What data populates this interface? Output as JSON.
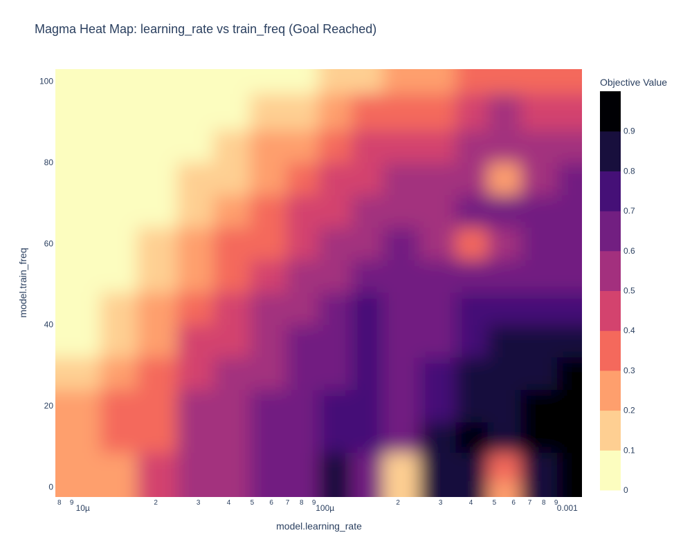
{
  "chart_data": {
    "type": "heatmap",
    "title": "Magma Heat Map: learning_rate vs train_freq (Goal Reached)",
    "xlabel": "model.learning_rate",
    "ylabel": "model.train_freq",
    "x_scale": "log",
    "xlim": [
      7.7e-06,
      0.00115
    ],
    "ylim": [
      -2.5,
      103
    ],
    "x_major_ticks": [
      {
        "value": 1e-05,
        "label": "10µ"
      },
      {
        "value": 0.0001,
        "label": "100µ"
      },
      {
        "value": 0.001,
        "label": "0.001"
      }
    ],
    "x_minor_ticks": [
      {
        "value": 8e-06,
        "label": "8"
      },
      {
        "value": 9e-06,
        "label": "9"
      },
      {
        "value": 2e-05,
        "label": "2"
      },
      {
        "value": 3e-05,
        "label": "3"
      },
      {
        "value": 4e-05,
        "label": "4"
      },
      {
        "value": 5e-05,
        "label": "5"
      },
      {
        "value": 6e-05,
        "label": "6"
      },
      {
        "value": 7e-05,
        "label": "7"
      },
      {
        "value": 8e-05,
        "label": "8"
      },
      {
        "value": 9e-05,
        "label": "9"
      },
      {
        "value": 0.0002,
        "label": "2"
      },
      {
        "value": 0.0003,
        "label": "3"
      },
      {
        "value": 0.0004,
        "label": "4"
      },
      {
        "value": 0.0005,
        "label": "5"
      },
      {
        "value": 0.0006,
        "label": "6"
      },
      {
        "value": 0.0007,
        "label": "7"
      },
      {
        "value": 0.0008,
        "label": "8"
      },
      {
        "value": 0.0009,
        "label": "9"
      }
    ],
    "y_ticks": [
      0,
      20,
      40,
      60,
      80,
      100
    ],
    "colorscale": "Magma",
    "colorbar": {
      "title": "Objective Value",
      "ticks": [
        0,
        0.1,
        0.2,
        0.3,
        0.4,
        0.5,
        0.6,
        0.7,
        0.8,
        0.9
      ],
      "range": [
        0,
        1
      ],
      "colors": [
        "#fcfdbf",
        "#fecf92",
        "#fe9f6d",
        "#f4695c",
        "#d3436e",
        "#a3307e",
        "#721f81",
        "#451077",
        "#180f3d",
        "#000004"
      ]
    },
    "x": [
      8e-06,
      1e-05,
      1.4e-05,
      2e-05,
      3e-05,
      4e-05,
      6e-05,
      8e-05,
      0.00011,
      0.00015,
      0.0002,
      0.0003,
      0.0004,
      0.00055,
      0.00075,
      0.0011
    ],
    "y": [
      -2,
      5,
      12,
      20,
      28,
      36,
      44,
      52,
      60,
      68,
      76,
      84,
      92,
      102
    ],
    "z": [
      [
        0.2,
        0.2,
        0.2,
        0.4,
        0.5,
        0.5,
        0.6,
        0.6,
        0.8,
        0.6,
        0.1,
        0.8,
        0.8,
        0.2,
        0.8,
        1.0
      ],
      [
        0.2,
        0.2,
        0.2,
        0.4,
        0.5,
        0.5,
        0.6,
        0.6,
        0.8,
        0.6,
        0.1,
        0.8,
        0.8,
        0.3,
        0.8,
        1.0
      ],
      [
        0.2,
        0.2,
        0.3,
        0.3,
        0.5,
        0.5,
        0.6,
        0.6,
        0.7,
        0.7,
        0.6,
        0.8,
        0.9,
        0.8,
        0.9,
        1.0
      ],
      [
        0.2,
        0.2,
        0.3,
        0.3,
        0.5,
        0.5,
        0.6,
        0.6,
        0.7,
        0.7,
        0.6,
        0.7,
        0.8,
        0.8,
        0.9,
        1.0
      ],
      [
        0.1,
        0.1,
        0.2,
        0.3,
        0.4,
        0.5,
        0.5,
        0.6,
        0.6,
        0.7,
        0.6,
        0.7,
        0.8,
        0.8,
        0.8,
        0.9
      ],
      [
        0.0,
        0.0,
        0.1,
        0.2,
        0.4,
        0.4,
        0.5,
        0.6,
        0.6,
        0.7,
        0.6,
        0.6,
        0.7,
        0.8,
        0.8,
        0.8
      ],
      [
        0.0,
        0.0,
        0.1,
        0.2,
        0.3,
        0.4,
        0.5,
        0.5,
        0.6,
        0.7,
        0.6,
        0.6,
        0.7,
        0.7,
        0.7,
        0.7
      ],
      [
        0.0,
        0.0,
        0.0,
        0.1,
        0.2,
        0.3,
        0.4,
        0.5,
        0.5,
        0.6,
        0.6,
        0.6,
        0.6,
        0.6,
        0.6,
        0.6
      ],
      [
        0.0,
        0.0,
        0.0,
        0.1,
        0.2,
        0.3,
        0.3,
        0.4,
        0.5,
        0.5,
        0.6,
        0.5,
        0.3,
        0.5,
        0.6,
        0.6
      ],
      [
        0.0,
        0.0,
        0.0,
        0.0,
        0.1,
        0.2,
        0.3,
        0.4,
        0.4,
        0.5,
        0.5,
        0.5,
        0.6,
        0.6,
        0.6,
        0.6
      ],
      [
        0.0,
        0.0,
        0.0,
        0.0,
        0.1,
        0.1,
        0.2,
        0.3,
        0.4,
        0.4,
        0.5,
        0.5,
        0.5,
        0.2,
        0.5,
        0.6
      ],
      [
        0.0,
        0.0,
        0.0,
        0.0,
        0.0,
        0.1,
        0.2,
        0.2,
        0.3,
        0.4,
        0.4,
        0.4,
        0.5,
        0.5,
        0.5,
        0.5
      ],
      [
        0.0,
        0.0,
        0.0,
        0.0,
        0.0,
        0.0,
        0.1,
        0.1,
        0.2,
        0.3,
        0.3,
        0.3,
        0.4,
        0.5,
        0.4,
        0.4
      ],
      [
        0.0,
        0.0,
        0.0,
        0.0,
        0.0,
        0.0,
        0.0,
        0.0,
        0.1,
        0.1,
        0.2,
        0.2,
        0.3,
        0.3,
        0.3,
        0.3
      ]
    ]
  }
}
